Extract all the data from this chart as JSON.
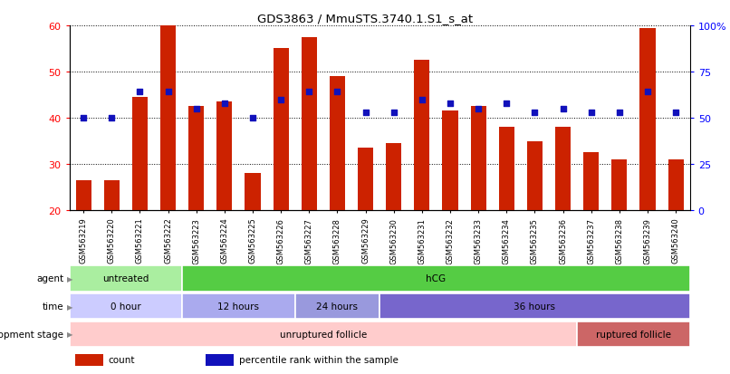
{
  "title": "GDS3863 / MmuSTS.3740.1.S1_s_at",
  "samples": [
    "GSM563219",
    "GSM563220",
    "GSM563221",
    "GSM563222",
    "GSM563223",
    "GSM563224",
    "GSM563225",
    "GSM563226",
    "GSM563227",
    "GSM563228",
    "GSM563229",
    "GSM563230",
    "GSM563231",
    "GSM563232",
    "GSM563233",
    "GSM563234",
    "GSM563235",
    "GSM563236",
    "GSM563237",
    "GSM563238",
    "GSM563239",
    "GSM563240"
  ],
  "counts": [
    26.5,
    26.5,
    44.5,
    60.0,
    42.5,
    43.5,
    28.0,
    55.0,
    57.5,
    49.0,
    33.5,
    34.5,
    52.5,
    41.5,
    42.5,
    38.0,
    35.0,
    38.0,
    32.5,
    31.0,
    59.5,
    31.0
  ],
  "percentiles_right": [
    50,
    50,
    64,
    64,
    55,
    58,
    50,
    60,
    64,
    64,
    53,
    53,
    60,
    58,
    55,
    58,
    53,
    55,
    53,
    53,
    64,
    53
  ],
  "ylim_left": [
    20,
    60
  ],
  "ylim_right": [
    0,
    100
  ],
  "yticks_left": [
    20,
    30,
    40,
    50,
    60
  ],
  "yticks_right": [
    0,
    25,
    50,
    75,
    100
  ],
  "bar_color": "#CC2200",
  "dot_color": "#1111BB",
  "bar_width": 0.55,
  "agent_groups": [
    {
      "label": "untreated",
      "start": 0,
      "end": 4,
      "color": "#AAEEA0"
    },
    {
      "label": "hCG",
      "start": 4,
      "end": 22,
      "color": "#55CC44"
    }
  ],
  "time_groups": [
    {
      "label": "0 hour",
      "start": 0,
      "end": 4,
      "color": "#CCCCFF"
    },
    {
      "label": "12 hours",
      "start": 4,
      "end": 8,
      "color": "#AAAAEE"
    },
    {
      "label": "24 hours",
      "start": 8,
      "end": 11,
      "color": "#9999DD"
    },
    {
      "label": "36 hours",
      "start": 11,
      "end": 22,
      "color": "#7766CC"
    }
  ],
  "dev_groups": [
    {
      "label": "unruptured follicle",
      "start": 0,
      "end": 18,
      "color": "#FFCCCC"
    },
    {
      "label": "ruptured follicle",
      "start": 18,
      "end": 22,
      "color": "#CC6666"
    }
  ],
  "row_labels": [
    "agent",
    "time",
    "development stage"
  ],
  "legend_items": [
    {
      "label": "count",
      "color": "#CC2200"
    },
    {
      "label": "percentile rank within the sample",
      "color": "#1111BB"
    }
  ]
}
